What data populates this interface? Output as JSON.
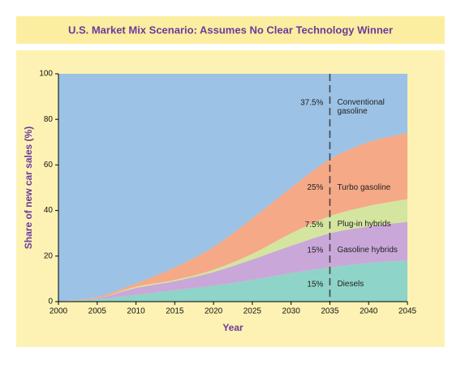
{
  "chart_data": {
    "type": "stacked-area",
    "title": "U.S. Market Mix Scenario: Assumes No Clear Technology Winner",
    "x_label": "Year",
    "y_label": "Share of new car sales (%)",
    "x": [
      2000,
      2005,
      2010,
      2015,
      2020,
      2025,
      2030,
      2035,
      2040,
      2045
    ],
    "xlim": [
      2000,
      2045
    ],
    "xticks": [
      2000,
      2005,
      2010,
      2015,
      2020,
      2025,
      2030,
      2035,
      2040,
      2045
    ],
    "ylim": [
      0,
      100
    ],
    "yticks": [
      0,
      20,
      40,
      60,
      80,
      100
    ],
    "marker_x": 2035,
    "series": [
      {
        "name": "Diesels",
        "color": "#8fd4c8",
        "values": [
          0,
          1,
          3,
          5,
          7,
          9.5,
          12.5,
          15,
          17,
          18
        ],
        "annotation": "15%"
      },
      {
        "name": "Gasoline hybrids",
        "color": "#c9a8d9",
        "values": [
          0,
          0.5,
          3,
          4,
          6,
          9,
          12,
          15,
          16,
          17
        ],
        "annotation": "15%"
      },
      {
        "name": "Plug-in hybrids",
        "color": "#d4e5a0",
        "values": [
          0,
          0,
          0.5,
          0.5,
          1,
          2.5,
          5.5,
          7.5,
          9,
          10
        ],
        "annotation": "7.5%"
      },
      {
        "name": "Turbo gasoline",
        "color": "#f5a987",
        "values": [
          0,
          0.5,
          1.5,
          5.5,
          10,
          15.5,
          20,
          25,
          28,
          29
        ],
        "annotation": "25%"
      },
      {
        "name": "Conventional gasoline",
        "color": "#9cc2e6",
        "values": [
          100,
          98,
          92,
          85,
          76,
          63.5,
          50,
          37.5,
          30,
          26
        ],
        "annotation": "37.5%"
      }
    ]
  }
}
